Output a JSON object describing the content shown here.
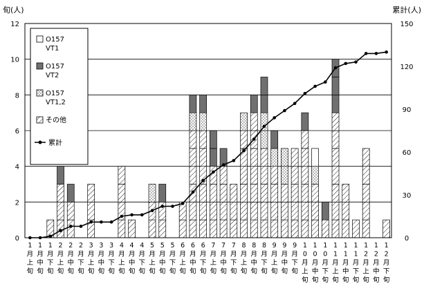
{
  "chart_data": {
    "type": "bar",
    "stacked": true,
    "left_axis_label": "旬(人)",
    "right_axis_label": "累計(人)",
    "left_ylim": [
      0,
      12
    ],
    "left_ticks": [
      0,
      2,
      4,
      6,
      8,
      10,
      12
    ],
    "right_ylim": [
      0,
      150
    ],
    "right_ticks": [
      0,
      30,
      60,
      90,
      120,
      150
    ],
    "grid": "horizontal",
    "legend_position": "top-left",
    "categories": [
      [
        "1",
        "月",
        "上",
        "旬"
      ],
      [
        "1",
        "月",
        "中",
        "旬"
      ],
      [
        "1",
        "月",
        "下",
        "旬"
      ],
      [
        "2",
        "月",
        "上",
        "旬"
      ],
      [
        "2",
        "月",
        "中",
        "旬"
      ],
      [
        "2",
        "月",
        "下",
        "旬"
      ],
      [
        "3",
        "月",
        "上",
        "旬"
      ],
      [
        "3",
        "月",
        "中",
        "旬"
      ],
      [
        "3",
        "月",
        "下",
        "旬"
      ],
      [
        "4",
        "月",
        "上",
        "旬"
      ],
      [
        "4",
        "月",
        "中",
        "旬"
      ],
      [
        "4",
        "月",
        "下",
        "旬"
      ],
      [
        "5",
        "月",
        "上",
        "旬"
      ],
      [
        "5",
        "月",
        "中",
        "旬"
      ],
      [
        "5",
        "月",
        "下",
        "旬"
      ],
      [
        "6",
        "月",
        "上",
        "旬"
      ],
      [
        "6",
        "月",
        "中",
        "旬"
      ],
      [
        "6",
        "月",
        "下",
        "旬"
      ],
      [
        "7",
        "月",
        "上",
        "旬"
      ],
      [
        "7",
        "月",
        "中",
        "旬"
      ],
      [
        "7",
        "月",
        "下",
        "旬"
      ],
      [
        "8",
        "月",
        "上",
        "旬"
      ],
      [
        "8",
        "月",
        "中",
        "旬"
      ],
      [
        "8",
        "月",
        "下",
        "旬"
      ],
      [
        "9",
        "月",
        "上",
        "旬"
      ],
      [
        "9",
        "月",
        "中",
        "旬"
      ],
      [
        "9",
        "月",
        "下",
        "旬"
      ],
      [
        "1",
        "0",
        "月",
        "上",
        "旬"
      ],
      [
        "1",
        "0",
        "月",
        "中",
        "旬"
      ],
      [
        "1",
        "0",
        "月",
        "下",
        "旬"
      ],
      [
        "1",
        "1",
        "月",
        "上",
        "旬"
      ],
      [
        "1",
        "1",
        "月",
        "中",
        "旬"
      ],
      [
        "1",
        "1",
        "月",
        "下",
        "旬"
      ],
      [
        "1",
        "2",
        "月",
        "上",
        "旬"
      ],
      [
        "1",
        "2",
        "月",
        "中",
        "旬"
      ],
      [
        "1",
        "2",
        "月",
        "下",
        "旬"
      ]
    ],
    "series": [
      {
        "name": "O157 VT1",
        "pattern": "white",
        "values": [
          0,
          0,
          0,
          0,
          0,
          0,
          0,
          0,
          0,
          0,
          0,
          0,
          0,
          0,
          0,
          0,
          0,
          0,
          0,
          0,
          0,
          0,
          0,
          0,
          0,
          0,
          0,
          0,
          1,
          0,
          0,
          0,
          0,
          0,
          0,
          0
        ]
      },
      {
        "name": "O157 VT2",
        "pattern": "gray",
        "values": [
          0,
          0,
          0,
          1,
          1,
          0,
          0,
          0,
          0,
          0,
          0,
          0,
          0,
          1,
          0,
          0,
          1,
          1,
          2,
          1,
          0,
          0,
          1,
          2,
          1,
          0,
          0,
          1,
          0,
          1,
          3,
          0,
          0,
          0,
          0,
          0
        ]
      },
      {
        "name": "O157 VT1,2",
        "pattern": "dots",
        "values": [
          0,
          0,
          0,
          0,
          0,
          0,
          0,
          0,
          0,
          0,
          0,
          0,
          1,
          0,
          0,
          0,
          1,
          1,
          0,
          0,
          0,
          1,
          0,
          2,
          1,
          2,
          0,
          0,
          1,
          0,
          0,
          0,
          0,
          0,
          0,
          0
        ]
      },
      {
        "name": "その他",
        "pattern": "hatch",
        "values": [
          0,
          0,
          1,
          3,
          2,
          0,
          3,
          0,
          0,
          4,
          1,
          0,
          2,
          2,
          0,
          2,
          6,
          6,
          4,
          4,
          3,
          6,
          7,
          5,
          4,
          3,
          5,
          6,
          3,
          1,
          7,
          3,
          1,
          5,
          0,
          1
        ]
      }
    ],
    "cumulative": {
      "name": "累計",
      "values": [
        0,
        0,
        1,
        5,
        8,
        8,
        11,
        11,
        11,
        15,
        16,
        16,
        19,
        22,
        22,
        24,
        32,
        40,
        46,
        51,
        54,
        61,
        69,
        78,
        84,
        89,
        94,
        101,
        106,
        109,
        119,
        122,
        123,
        129,
        129,
        130
      ]
    }
  }
}
